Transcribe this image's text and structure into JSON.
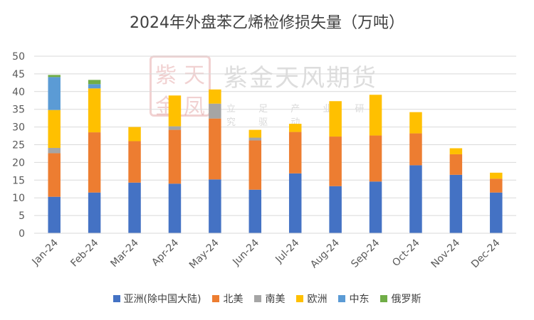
{
  "chart_data": {
    "type": "bar",
    "stacked": true,
    "title": "2024年外盘苯乙烯检修损失量（万吨）",
    "categories": [
      "Jan-24",
      "Feb-24",
      "Mar-24",
      "Apr-24",
      "May-24",
      "Jun-24",
      "Jul-24",
      "Aug-24",
      "Sep-24",
      "Oct-24",
      "Nov-24",
      "Dec-24"
    ],
    "ylim": [
      0,
      50
    ],
    "yticks": [
      0,
      5,
      10,
      15,
      20,
      25,
      30,
      35,
      40,
      45,
      50
    ],
    "grid": true,
    "legend_position": "bottom",
    "series": [
      {
        "name": "亚洲(除中国大陆)",
        "color": "#4472C4",
        "values": [
          10.3,
          11.5,
          14.3,
          14.0,
          15.2,
          12.3,
          16.9,
          13.3,
          14.6,
          19.2,
          16.5,
          11.5
        ]
      },
      {
        "name": "北美",
        "color": "#ED7D31",
        "values": [
          12.3,
          17.0,
          11.7,
          15.2,
          17.2,
          13.9,
          11.7,
          14.0,
          13.0,
          9.0,
          5.8,
          3.9
        ]
      },
      {
        "name": "南美",
        "color": "#A5A5A5",
        "values": [
          1.5,
          0,
          0,
          1.0,
          4.2,
          0.8,
          0,
          0,
          0,
          0,
          0,
          0
        ]
      },
      {
        "name": "欧洲",
        "color": "#FFC000",
        "values": [
          10.7,
          12.4,
          4.0,
          8.7,
          4.0,
          2.2,
          2.3,
          10.0,
          11.5,
          6.0,
          1.7,
          1.7
        ]
      },
      {
        "name": "中东",
        "color": "#5B9BD5",
        "values": [
          9.3,
          1.2,
          0,
          0,
          0,
          0,
          0,
          0,
          0,
          0,
          0,
          0
        ]
      },
      {
        "name": "俄罗斯",
        "color": "#70AD47",
        "values": [
          0.6,
          1.2,
          0,
          0,
          0,
          0,
          0,
          0,
          0,
          0,
          0,
          0
        ]
      }
    ]
  },
  "watermark": {
    "seal_chars": [
      "紫",
      "天",
      "金",
      "凤"
    ],
    "name": "紫金天风期货",
    "slogan": "立 足 产 业 研 究 驱 动"
  }
}
